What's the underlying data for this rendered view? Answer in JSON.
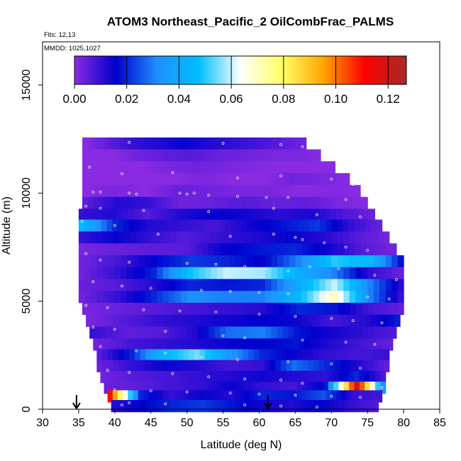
{
  "chart_data": {
    "type": "heatmap",
    "title": "ATOM3 Northeast_Pacific_2 OilCombFrac_PALMS",
    "subtitle_flights": "Flts: 12,13",
    "subtitle_dates": "MMDD: 1025,1027",
    "xlabel": "Latitude (deg N)",
    "ylabel": "Altitude (m)",
    "xlim": [
      30,
      85
    ],
    "ylim": [
      0,
      17000
    ],
    "x_ticks": [
      "30",
      "35",
      "40",
      "45",
      "50",
      "55",
      "60",
      "65",
      "70",
      "75",
      "80",
      "85"
    ],
    "y_ticks": [
      "0",
      "5000",
      "10000",
      "15000"
    ],
    "colorbar": {
      "range": [
        0,
        0.127
      ],
      "ticks": [
        "0.00",
        "0.02",
        "0.04",
        "0.06",
        "0.08",
        "0.10",
        "0.12"
      ],
      "colors": [
        "#8A2BE2",
        "#0000CD",
        "#1E90FF",
        "#00BFFF",
        "#FFFFFF",
        "#FFFF66",
        "#FFA500",
        "#FF0000",
        "#A52A2A"
      ]
    },
    "arrows_latitude": [
      34.7,
      61.2
    ],
    "bands": [
      {
        "alt": 12300,
        "lat0": 35.5,
        "lat1": 66.5,
        "values": [
          0,
          0.005,
          0.01,
          0.012,
          0.015,
          0.012,
          0.01,
          0.008,
          0.005,
          0.003
        ]
      },
      {
        "alt": 11750,
        "lat0": 35.5,
        "lat1": 68.5,
        "values": [
          0,
          0,
          0.003,
          0.005,
          0.006,
          0.004,
          0.003,
          0.002,
          0.002,
          0
        ]
      },
      {
        "alt": 11200,
        "lat0": 35.5,
        "lat1": 70.5,
        "values": [
          0,
          0,
          0,
          0.002,
          0.003,
          0.002,
          0.001,
          0,
          0,
          0
        ]
      },
      {
        "alt": 10650,
        "lat0": 35.5,
        "lat1": 72.5,
        "values": [
          0,
          0,
          0,
          0,
          0.002,
          0,
          0,
          0.003,
          0.002,
          0
        ]
      },
      {
        "alt": 10100,
        "lat0": 35.5,
        "lat1": 74.0,
        "values": [
          0,
          0.002,
          0,
          0.004,
          0.003,
          0.002,
          0.002,
          0,
          0.001,
          0
        ]
      },
      {
        "alt": 9550,
        "lat0": 35.5,
        "lat1": 75.0,
        "values": [
          0.005,
          0.012,
          0.01,
          0.003,
          0.004,
          0.006,
          0.004,
          0.005,
          0.002,
          0
        ]
      },
      {
        "alt": 9000,
        "lat0": 35.0,
        "lat1": 76.0,
        "values": [
          0.01,
          0.012,
          0.006,
          0.012,
          0.016,
          0.014,
          0.011,
          0.013,
          0.007,
          0.003
        ]
      },
      {
        "alt": 8500,
        "lat0": 35.0,
        "lat1": 77.0,
        "values": [
          0.045,
          0.02,
          0.012,
          0.01,
          0.008,
          0.014,
          0.018,
          0.022,
          0.01,
          0.003
        ]
      },
      {
        "alt": 7950,
        "lat0": 35.0,
        "lat1": 78.0,
        "values": [
          0.01,
          0.015,
          0.01,
          0.006,
          0.01,
          0.012,
          0.015,
          0.012,
          0.006,
          0.002
        ]
      },
      {
        "alt": 7400,
        "lat0": 35.0,
        "lat1": 79.0,
        "values": [
          0.002,
          0.004,
          0.005,
          0.006,
          0.015,
          0.018,
          0.02,
          0.014,
          0.006,
          0.002
        ]
      },
      {
        "alt": 6850,
        "lat0": 35.0,
        "lat1": 80.0,
        "values": [
          0.003,
          0.008,
          0.016,
          0.022,
          0.02,
          0.015,
          0.03,
          0.05,
          0.045,
          0.012
        ]
      },
      {
        "alt": 6300,
        "lat0": 35.0,
        "lat1": 80.0,
        "values": [
          0.003,
          0.01,
          0.02,
          0.048,
          0.06,
          0.058,
          0.042,
          0.03,
          0.01,
          0.003
        ]
      },
      {
        "alt": 5750,
        "lat0": 35.0,
        "lat1": 80.0,
        "values": [
          0.004,
          0.006,
          0.012,
          0.02,
          0.018,
          0.02,
          0.04,
          0.06,
          0.03,
          0.008
        ]
      },
      {
        "alt": 5200,
        "lat0": 35.0,
        "lat1": 80.0,
        "values": [
          0.003,
          0.01,
          0.02,
          0.032,
          0.03,
          0.03,
          0.045,
          0.07,
          0.03,
          0.006
        ]
      },
      {
        "alt": 4650,
        "lat0": 35.5,
        "lat1": 80.0,
        "values": [
          0.002,
          0.004,
          0.006,
          0.008,
          0.01,
          0.012,
          0.02,
          0.018,
          0.008,
          0.004
        ]
      },
      {
        "alt": 4100,
        "lat0": 36.0,
        "lat1": 79.5,
        "values": [
          0.002,
          0.006,
          0.01,
          0.012,
          0.014,
          0.016,
          0.014,
          0.008,
          0.012,
          0.02
        ]
      },
      {
        "alt": 3550,
        "lat0": 36.5,
        "lat1": 79.0,
        "values": [
          0.01,
          0.005,
          0.006,
          0.012,
          0.028,
          0.03,
          0.018,
          0.014,
          0.01,
          0.006
        ]
      },
      {
        "alt": 3000,
        "lat0": 37.0,
        "lat1": 78.5,
        "values": [
          0.003,
          0.008,
          0.01,
          0.012,
          0.015,
          0.016,
          0.018,
          0.012,
          0.008,
          0.004
        ]
      },
      {
        "alt": 2500,
        "lat0": 37.5,
        "lat1": 78.0,
        "values": [
          0.006,
          0.02,
          0.045,
          0.055,
          0.035,
          0.02,
          0.015,
          0.01,
          0.008,
          0.01
        ]
      },
      {
        "alt": 2000,
        "lat0": 37.5,
        "lat1": 78.0,
        "values": [
          0.004,
          0.01,
          0.015,
          0.012,
          0.008,
          0.01,
          0.028,
          0.02,
          0.012,
          0.003
        ]
      },
      {
        "alt": 1500,
        "lat0": 38.0,
        "lat1": 77.5,
        "values": [
          0.003,
          0.006,
          0.008,
          0.01,
          0.012,
          0.014,
          0.012,
          0.01,
          0.02,
          0.005
        ]
      },
      {
        "alt": 1000,
        "lat0": 38.5,
        "lat1": 77.5,
        "values": [
          0.004,
          0.005,
          0.008,
          0.01,
          0.015,
          0.01,
          0.008,
          0.018,
          0.12,
          0.015
        ]
      },
      {
        "alt": 600,
        "lat0": 39.0,
        "lat1": 77.0,
        "values": [
          0.11,
          0.02,
          0.01,
          0.015,
          0.012,
          0.02,
          0.018,
          0.025,
          0.01,
          0.008
        ]
      },
      {
        "alt": 150,
        "lat0": 39.5,
        "lat1": 76.5,
        "values": [
          0.012,
          0.016,
          0.02,
          0.022,
          0.018,
          0.014,
          0.012,
          0.016,
          0.01,
          0.006
        ]
      }
    ],
    "sample_points": [
      [
        42,
        12350
      ],
      [
        55,
        12300
      ],
      [
        63,
        12250
      ],
      [
        66,
        12150
      ],
      [
        36.5,
        11200
      ],
      [
        41,
        10900
      ],
      [
        48,
        10950
      ],
      [
        57,
        10700
      ],
      [
        63,
        10800
      ],
      [
        70,
        10650
      ],
      [
        73,
        10400
      ],
      [
        37,
        10050
      ],
      [
        38,
        10050
      ],
      [
        42,
        10000
      ],
      [
        43,
        9950
      ],
      [
        49,
        10000
      ],
      [
        50,
        9950
      ],
      [
        51,
        10000
      ],
      [
        53,
        9900
      ],
      [
        57,
        9850
      ],
      [
        61,
        9800
      ],
      [
        64,
        9800
      ],
      [
        72,
        9700
      ],
      [
        36,
        9400
      ],
      [
        38,
        9300
      ],
      [
        44,
        9200
      ],
      [
        53,
        9150
      ],
      [
        62,
        9300
      ],
      [
        68,
        9000
      ],
      [
        74,
        8900
      ],
      [
        35.5,
        8700
      ],
      [
        40,
        8500
      ],
      [
        46,
        8100
      ],
      [
        56,
        8000
      ],
      [
        62,
        8100
      ],
      [
        65,
        7950
      ],
      [
        66,
        7850
      ],
      [
        69,
        7700
      ],
      [
        72,
        7500
      ],
      [
        75,
        7350
      ],
      [
        36,
        7200
      ],
      [
        38,
        6900
      ],
      [
        42,
        6800
      ],
      [
        50,
        6750
      ],
      [
        54,
        6700
      ],
      [
        58,
        6600
      ],
      [
        61,
        6500
      ],
      [
        64,
        6400
      ],
      [
        67,
        6600
      ],
      [
        71,
        6500
      ],
      [
        76,
        6200
      ],
      [
        79,
        6000
      ],
      [
        37,
        5900
      ],
      [
        41,
        5700
      ],
      [
        45,
        5600
      ],
      [
        52,
        5500
      ],
      [
        56,
        5450
      ],
      [
        60,
        5400
      ],
      [
        64,
        5350
      ],
      [
        70,
        5300
      ],
      [
        75,
        5200
      ],
      [
        78,
        5100
      ],
      [
        36,
        4800
      ],
      [
        39,
        4700
      ],
      [
        44,
        4600
      ],
      [
        49,
        4550
      ],
      [
        54,
        4500
      ],
      [
        60,
        4400
      ],
      [
        65,
        4300
      ],
      [
        70,
        4200
      ],
      [
        73,
        4100
      ],
      [
        77,
        4000
      ],
      [
        37,
        3800
      ],
      [
        40,
        3700
      ],
      [
        47,
        3600
      ],
      [
        55,
        3400
      ],
      [
        58,
        3300
      ],
      [
        66,
        3200
      ],
      [
        72,
        3100
      ],
      [
        76,
        3000
      ],
      [
        38,
        2900
      ],
      [
        43,
        2700
      ],
      [
        47,
        2600
      ],
      [
        52,
        2400
      ],
      [
        57,
        2300
      ],
      [
        64,
        2200
      ],
      [
        70,
        2100
      ],
      [
        74,
        1900
      ],
      [
        39,
        1800
      ],
      [
        42,
        1700
      ],
      [
        48,
        1650
      ],
      [
        53,
        1500
      ],
      [
        58,
        1400
      ],
      [
        63,
        1350
      ],
      [
        66,
        1200
      ],
      [
        72,
        1100
      ],
      [
        77,
        1000
      ],
      [
        40,
        900
      ],
      [
        45,
        850
      ],
      [
        50,
        800
      ],
      [
        56,
        750
      ],
      [
        60,
        700
      ],
      [
        65,
        650
      ],
      [
        70,
        600
      ],
      [
        74,
        550
      ],
      [
        42,
        300
      ],
      [
        47,
        250
      ],
      [
        58,
        200
      ],
      [
        63,
        150
      ],
      [
        68,
        100
      ],
      [
        41,
        200
      ]
    ]
  }
}
